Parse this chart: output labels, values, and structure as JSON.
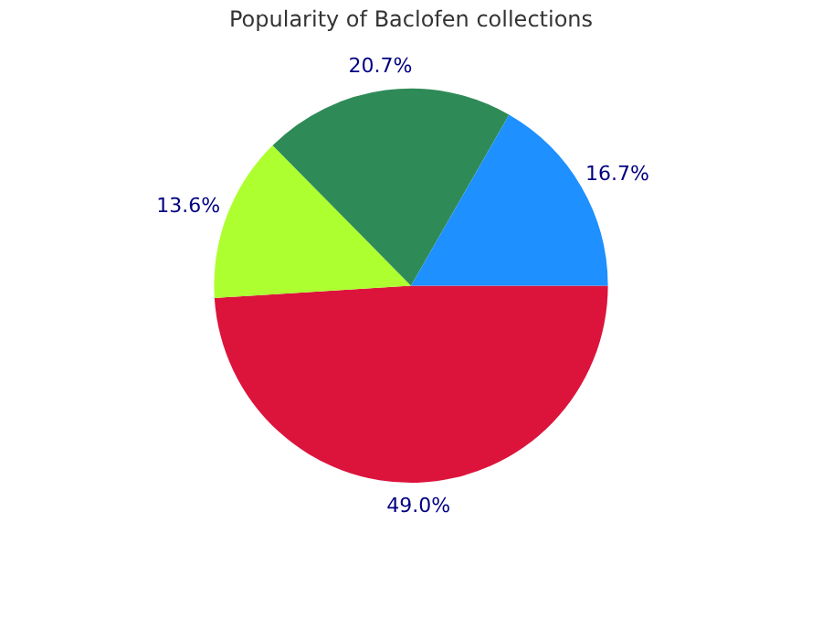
{
  "chart_data": {
    "type": "pie",
    "title": "Popularity of Baclofen collections",
    "categories": [
      null,
      null,
      null,
      null
    ],
    "values": [
      49.0,
      13.6,
      20.7,
      16.7
    ],
    "colors": [
      "#dc143c",
      "#adff2f",
      "#2e8b57",
      "#1e90ff"
    ],
    "value_labels": [
      "49.0%",
      "13.6%",
      "20.7%",
      "16.7%"
    ],
    "legend": false
  }
}
